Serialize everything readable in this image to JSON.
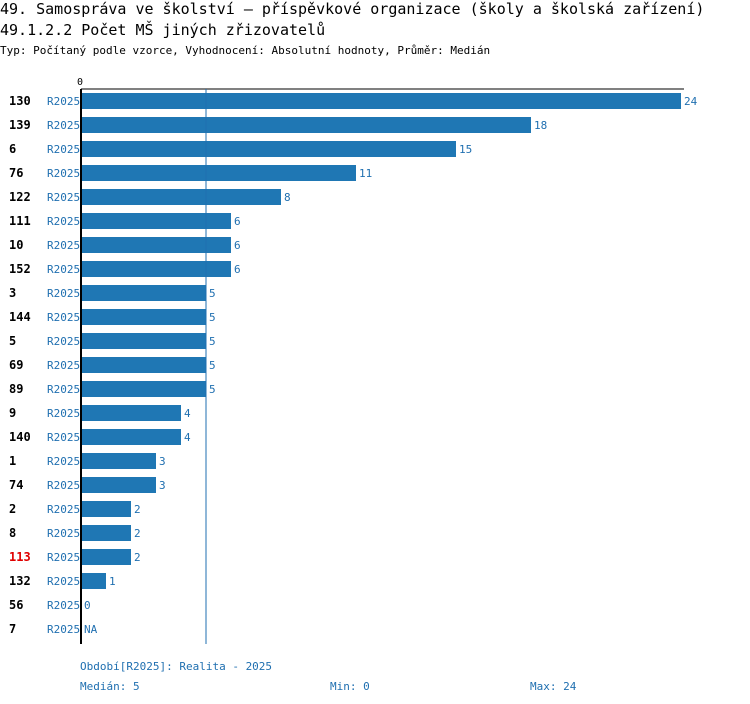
{
  "header": {
    "title": "49. Samospráva ve školství – příspěvkové organizace (školy a školská zařízení)",
    "subtitle": "49.1.2.2 Počet MŠ jiných zřizovatelů",
    "type_line": "Typ: Počítaný podle vzorce, Vyhodnocení: Absolutní hodnoty, Průměr: Medián"
  },
  "colors": {
    "bar": "#1f77b4",
    "text_blue": "#1f6fb0",
    "highlight": "#e00000",
    "axis": "#000000"
  },
  "chart_data": {
    "type": "bar",
    "orientation": "horizontal",
    "axis_zero_label": "0",
    "series_label": "R2025",
    "xlim": [
      0,
      24
    ],
    "median_line": 5,
    "highlight_category": "113",
    "categories": [
      "130",
      "139",
      "6",
      "76",
      "122",
      "111",
      "10",
      "152",
      "3",
      "144",
      "5",
      "69",
      "89",
      "9",
      "140",
      "1",
      "74",
      "2",
      "8",
      "113",
      "132",
      "56",
      "7"
    ],
    "values": [
      24,
      18,
      15,
      11,
      8,
      6,
      6,
      6,
      5,
      5,
      5,
      5,
      5,
      4,
      4,
      3,
      3,
      2,
      2,
      2,
      1,
      0,
      null
    ],
    "value_labels": [
      "24",
      "18",
      "15",
      "11",
      "8",
      "6",
      "6",
      "6",
      "5",
      "5",
      "5",
      "5",
      "5",
      "4",
      "4",
      "3",
      "3",
      "2",
      "2",
      "2",
      "1",
      "0",
      "NA"
    ]
  },
  "footer": {
    "period": "Období[R2025]: Realita - 2025",
    "median": "Medián: 5",
    "min": "Min: 0",
    "max": "Max: 24"
  }
}
